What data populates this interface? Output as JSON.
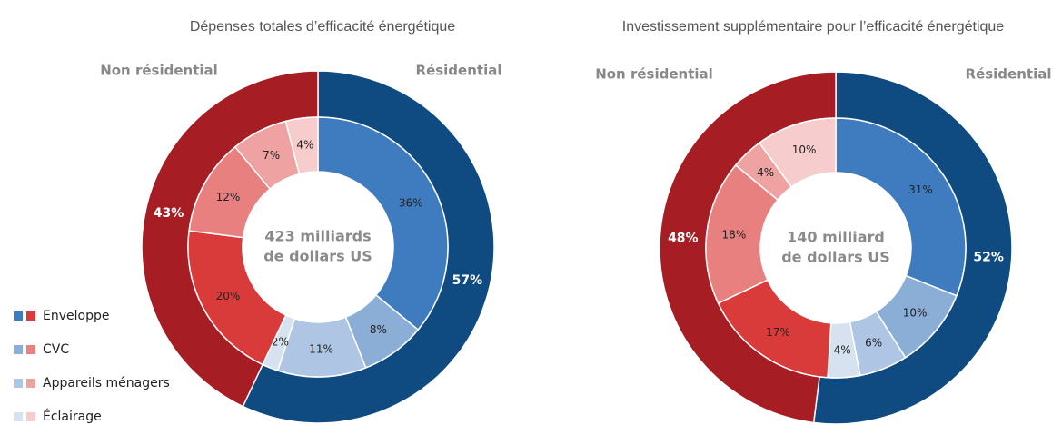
{
  "chart_data": [
    {
      "type": "donut",
      "title": "Dépenses totales d’efficacité énergétique",
      "center_label": [
        "423 milliards",
        "de dollars US"
      ],
      "outer": {
        "categories": [
          "Résidential",
          "Non résidential"
        ],
        "values": [
          57,
          43
        ],
        "value_labels": [
          "57%",
          "43%"
        ],
        "colors": [
          "#0f4a80",
          "#a61d24"
        ]
      },
      "series": [
        {
          "name": "Enveloppe",
          "colors": [
            "#3f7cbf",
            "#d93a3a"
          ],
          "values": [
            36,
            20
          ],
          "value_labels": [
            "36%",
            "20%"
          ]
        },
        {
          "name": "CVC",
          "colors": [
            "#8aaed6",
            "#e88080"
          ],
          "values": [
            8,
            12
          ],
          "value_labels": [
            "8%",
            "12%"
          ]
        },
        {
          "name": "Appareils ménagers",
          "colors": [
            "#aec6e4",
            "#efa2a2"
          ],
          "values": [
            11,
            7
          ],
          "value_labels": [
            "11%",
            "7%"
          ]
        },
        {
          "name": "Éclairage",
          "colors": [
            "#d6e2f0",
            "#f6cccc"
          ],
          "values": [
            2,
            4
          ],
          "value_labels": [
            "2%",
            "4%"
          ]
        }
      ]
    },
    {
      "type": "donut",
      "title": "Investissement supplémentaire pour l’efficacité énergétique",
      "center_label": [
        "140 milliard",
        "de dollars US"
      ],
      "outer": {
        "categories": [
          "Résidential",
          "Non résidential"
        ],
        "values": [
          52,
          48
        ],
        "value_labels": [
          "52%",
          "48%"
        ],
        "colors": [
          "#0f4a80",
          "#a61d24"
        ]
      },
      "series": [
        {
          "name": "Enveloppe",
          "colors": [
            "#3f7cbf",
            "#d93a3a"
          ],
          "values": [
            31,
            17
          ],
          "value_labels": [
            "31%",
            "17%"
          ]
        },
        {
          "name": "CVC",
          "colors": [
            "#8aaed6",
            "#e88080"
          ],
          "values": [
            10,
            18
          ],
          "value_labels": [
            "10%",
            "18%"
          ]
        },
        {
          "name": "Appareils ménagers",
          "colors": [
            "#aec6e4",
            "#efa2a2"
          ],
          "values": [
            6,
            4
          ],
          "value_labels": [
            "6%",
            "4%"
          ]
        },
        {
          "name": "Éclairage",
          "colors": [
            "#d6e2f0",
            "#f6cccc"
          ],
          "values": [
            4,
            10
          ],
          "value_labels": [
            "4%",
            "10%"
          ]
        }
      ]
    }
  ]
}
